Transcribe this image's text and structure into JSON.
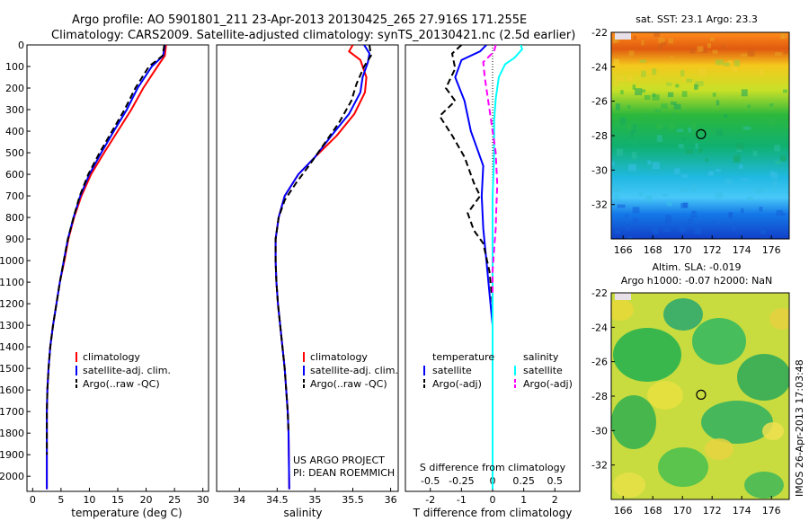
{
  "header": {
    "line1": "Argo profile: AO 5901801_211 23-Apr-2013 20130425_265 27.916S 171.255E",
    "line2": "Climatology: CARS2009. Satellite-adjusted climatology: synTS_20130421.nc (2.5d earlier)"
  },
  "colors": {
    "climatology": "#ff0000",
    "satellite": "#0000ff",
    "argo": "#000000",
    "sat_salinity": "#00ffff",
    "argo_salinity": "#ff00ff"
  },
  "chart_data": [
    {
      "type": "line",
      "id": "temperature",
      "xlabel": "temperature (deg C)",
      "ylabel": "",
      "xlim": [
        -1,
        31
      ],
      "ylim": [
        2070,
        0
      ],
      "xticks": [
        0,
        5,
        10,
        15,
        20,
        25,
        30
      ],
      "yticks": [
        0,
        100,
        200,
        300,
        400,
        500,
        600,
        700,
        800,
        900,
        1000,
        1100,
        1200,
        1300,
        1400,
        1500,
        1600,
        1700,
        1800,
        1900,
        2000
      ],
      "legend": [
        "climatology",
        "satellite-adj. clim.",
        "Argo(..raw -QC)"
      ],
      "series": [
        {
          "name": "climatology",
          "color": "red",
          "dash": false,
          "x": [
            23.5,
            23.3,
            22.0,
            19.5,
            17.4,
            15.0,
            12.6,
            10.3,
            8.6,
            7.3,
            6.3,
            5.6,
            4.8,
            4.2,
            3.6,
            3.1,
            2.8,
            2.6,
            2.5,
            2.5,
            2.5,
            2.5
          ],
          "y": [
            0,
            50,
            100,
            200,
            300,
            400,
            500,
            600,
            700,
            800,
            900,
            1000,
            1100,
            1200,
            1300,
            1400,
            1500,
            1600,
            1700,
            1800,
            1900,
            2060
          ]
        },
        {
          "name": "satellite-adj. clim.",
          "color": "blue",
          "dash": false,
          "x": [
            23.3,
            23.0,
            21.0,
            18.5,
            16.6,
            14.3,
            12.1,
            10.0,
            8.4,
            7.2,
            6.2,
            5.5,
            4.8,
            4.2,
            3.6,
            3.1,
            2.8,
            2.6,
            2.5,
            2.5,
            2.5,
            2.5
          ],
          "y": [
            0,
            50,
            100,
            200,
            300,
            400,
            500,
            600,
            700,
            800,
            900,
            1000,
            1100,
            1200,
            1300,
            1400,
            1500,
            1600,
            1700,
            1800,
            1900,
            2060
          ]
        },
        {
          "name": "Argo(..raw -QC)",
          "color": "black",
          "dash": true,
          "x": [
            23.2,
            22.9,
            20.5,
            18.1,
            16.2,
            14.0,
            11.8,
            9.8,
            8.3,
            7.2,
            6.2,
            5.5,
            4.8,
            4.2,
            3.6,
            3.1,
            2.8,
            2.6,
            2.5,
            2.5,
            2.5
          ],
          "y": [
            0,
            50,
            100,
            200,
            300,
            400,
            500,
            600,
            700,
            800,
            900,
            1000,
            1100,
            1200,
            1300,
            1400,
            1500,
            1600,
            1700,
            1800,
            1900
          ]
        }
      ]
    },
    {
      "type": "line",
      "id": "salinity",
      "xlabel": "salinity",
      "xlim": [
        33.7,
        36.1
      ],
      "ylim": [
        2070,
        0
      ],
      "xticks": [
        34,
        34.5,
        35,
        35.5,
        36
      ],
      "xtick_labels": [
        "34",
        "34.5",
        "35",
        "35.5",
        "36"
      ],
      "legend": [
        "climatology",
        "satellite-adj. clim.",
        "Argo(..raw -QC)"
      ],
      "annotation": [
        "US ARGO PROJECT",
        "PI: DEAN ROEMMICH"
      ],
      "series": [
        {
          "name": "climatology",
          "color": "red",
          "dash": false,
          "x": [
            35.5,
            35.45,
            35.6,
            35.68,
            35.66,
            35.52,
            35.29,
            35.0,
            34.78,
            34.6,
            34.52,
            34.48,
            34.48,
            34.49,
            34.51,
            34.54,
            34.57,
            34.6,
            34.62,
            34.64,
            34.65,
            34.66
          ],
          "y": [
            0,
            30,
            70,
            150,
            220,
            320,
            420,
            520,
            600,
            700,
            800,
            900,
            1000,
            1100,
            1200,
            1300,
            1400,
            1500,
            1600,
            1700,
            1800,
            2060
          ]
        },
        {
          "name": "satellite-adj. clim.",
          "color": "blue",
          "dash": false,
          "x": [
            35.65,
            35.72,
            35.7,
            35.63,
            35.6,
            35.45,
            35.22,
            35.0,
            34.78,
            34.6,
            34.52,
            34.48,
            34.48,
            34.49,
            34.51,
            34.54,
            34.57,
            34.6,
            34.62,
            34.64,
            34.65,
            34.66
          ],
          "y": [
            0,
            40,
            80,
            150,
            220,
            320,
            420,
            520,
            600,
            700,
            800,
            900,
            1000,
            1100,
            1200,
            1300,
            1400,
            1500,
            1600,
            1700,
            1800,
            2060
          ]
        },
        {
          "name": "Argo(..raw -QC)",
          "color": "black",
          "dash": true,
          "x": [
            35.72,
            35.74,
            35.65,
            35.55,
            35.48,
            35.32,
            35.12,
            34.92,
            34.75,
            34.6,
            34.52,
            34.48,
            34.48,
            34.49,
            34.51,
            34.54,
            34.57,
            34.6,
            34.62,
            34.64,
            34.65
          ],
          "y": [
            0,
            50,
            100,
            180,
            260,
            360,
            460,
            560,
            640,
            720,
            800,
            900,
            1000,
            1100,
            1200,
            1300,
            1400,
            1500,
            1600,
            1700,
            1800
          ]
        }
      ]
    },
    {
      "type": "line",
      "id": "difference",
      "xlabel": "T difference from climatology",
      "xlabel_top": "S difference from climatology",
      "xlim": [
        -2.8,
        2.8
      ],
      "ylim": [
        2070,
        0
      ],
      "xticks": [
        -2,
        -1,
        0,
        1,
        2
      ],
      "xticks_top": [
        -0.5,
        -0.25,
        0,
        0.25,
        0.5
      ],
      "xtick_labels_top": [
        "-0.5",
        "-0.25",
        "0",
        "0.25",
        "0.5"
      ],
      "legend_headers": [
        "temperature",
        "salinity"
      ],
      "legend": [
        "satellite",
        "Argo(-adj)",
        "satellite",
        "Argo(-adj)"
      ],
      "series": [
        {
          "name": "satellite",
          "color": "blue",
          "dash": false,
          "x": [
            -0.2,
            -0.4,
            -1.0,
            -1.2,
            -0.9,
            -0.8,
            -0.7,
            -0.5,
            -0.3,
            -0.35,
            -0.3,
            -0.2,
            -0.1,
            0,
            0,
            0,
            0,
            0,
            0,
            0,
            0,
            0
          ],
          "y": [
            0,
            30,
            70,
            150,
            260,
            330,
            400,
            480,
            560,
            700,
            850,
            1000,
            1150,
            1300,
            1400,
            1500,
            1600,
            1700,
            1800,
            1900,
            2000,
            2060
          ]
        },
        {
          "name": "Argo(-adj)",
          "color": "black",
          "dash": true,
          "x": [
            -1.0,
            -1.3,
            -1.2,
            -1.5,
            -1.2,
            -1.7,
            -1.3,
            -0.9,
            -0.6,
            -0.4,
            -0.8,
            -0.6,
            -0.3,
            -0.1,
            0
          ],
          "y": [
            0,
            40,
            110,
            200,
            260,
            330,
            420,
            520,
            640,
            700,
            780,
            860,
            920,
            1050,
            1200
          ]
        },
        {
          "name": "satellite",
          "color": "cyan",
          "dash": false,
          "x": [
            0.9,
            0.95,
            0.7,
            0.4,
            0.2,
            0.1,
            0.05,
            0.05,
            0.03,
            0,
            0,
            0,
            0,
            0,
            0,
            0,
            0,
            0,
            0,
            0,
            0,
            0
          ],
          "y": [
            0,
            20,
            60,
            90,
            150,
            250,
            350,
            500,
            600,
            700,
            800,
            900,
            1000,
            1100,
            1200,
            1300,
            1400,
            1500,
            1600,
            1700,
            1800,
            2060
          ]
        },
        {
          "name": "Argo(-adj)",
          "color": "magenta",
          "dash": true,
          "x": [
            0.1,
            0.05,
            -0.3,
            -0.25,
            -0.15,
            -0.05,
            0.1,
            0.15,
            0.12,
            0.1,
            0.05,
            0,
            0
          ],
          "y": [
            0,
            30,
            80,
            150,
            250,
            350,
            500,
            650,
            750,
            850,
            950,
            1050,
            1150
          ]
        }
      ]
    },
    {
      "type": "heatmap",
      "id": "sst-map",
      "title": "sat. SST: 23.1  Argo: 23.3",
      "xlim": [
        165.2,
        177.2
      ],
      "ylim": [
        -34,
        -22
      ],
      "xticks": [
        166,
        168,
        170,
        172,
        174,
        176
      ],
      "yticks": [
        -22,
        -24,
        -26,
        -28,
        -30,
        -32
      ],
      "marker": {
        "lon": 171.255,
        "lat": -27.916
      }
    },
    {
      "type": "heatmap",
      "id": "sla-map",
      "title": "Altim. SLA: -0.019",
      "subtitle": "Argo h1000: -0.07 h2000: NaN",
      "xlim": [
        165.2,
        177.2
      ],
      "ylim": [
        -34,
        -22
      ],
      "xticks": [
        166,
        168,
        170,
        172,
        174,
        176
      ],
      "yticks": [
        -22,
        -24,
        -26,
        -28,
        -30,
        -32
      ],
      "marker": {
        "lon": 171.255,
        "lat": -27.916
      }
    }
  ],
  "watermark": "IMOS 26-Apr-2013 17:03:48"
}
